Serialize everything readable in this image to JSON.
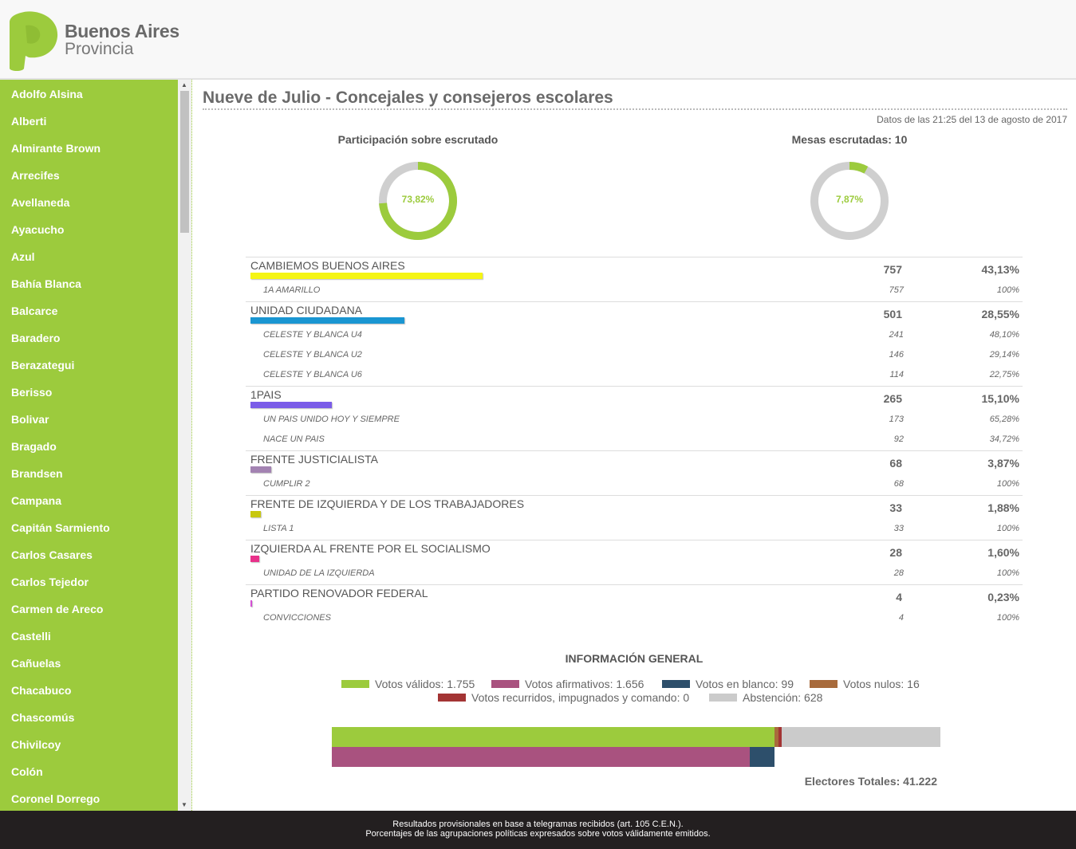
{
  "brand": {
    "line1": "Buenos Aires",
    "line2": "Provincia",
    "logo_color": "#9ccb3d",
    "logo_icon": "p-logo-icon"
  },
  "sidebar": {
    "items": [
      {
        "label": "Adolfo Alsina"
      },
      {
        "label": "Alberti"
      },
      {
        "label": "Almirante Brown"
      },
      {
        "label": "Arrecifes"
      },
      {
        "label": "Avellaneda"
      },
      {
        "label": "Ayacucho"
      },
      {
        "label": "Azul"
      },
      {
        "label": "Bahía Blanca"
      },
      {
        "label": "Balcarce"
      },
      {
        "label": "Baradero"
      },
      {
        "label": "Berazategui"
      },
      {
        "label": "Berisso"
      },
      {
        "label": "Bolivar"
      },
      {
        "label": "Bragado"
      },
      {
        "label": "Brandsen"
      },
      {
        "label": "Campana"
      },
      {
        "label": "Capitán Sarmiento"
      },
      {
        "label": "Carlos Casares"
      },
      {
        "label": "Carlos Tejedor"
      },
      {
        "label": "Carmen de Areco"
      },
      {
        "label": "Castelli"
      },
      {
        "label": "Cañuelas"
      },
      {
        "label": "Chacabuco"
      },
      {
        "label": "Chascomús"
      },
      {
        "label": "Chivilcoy"
      },
      {
        "label": "Colón"
      },
      {
        "label": "Coronel Dorrego"
      }
    ],
    "background_color": "#9ccb3d"
  },
  "main": {
    "title": "Nueve de Julio - Concejales y consejeros escolares",
    "timestamp": "Datos de las 21:25 del 13 de agosto de 2017",
    "participation": {
      "title": "Participación sobre escrutado",
      "value_label": "73,82%",
      "fraction": 0.7382,
      "fill_color": "#9ccb3d",
      "track_color": "#cfcfcf"
    },
    "tables_counted": {
      "title": "Mesas escrutadas: 10",
      "value_label": "7,87%",
      "fraction": 0.0787,
      "fill_color": "#9ccb3d",
      "track_color": "#cfcfcf"
    },
    "parties": [
      {
        "name": "CAMBIEMOS BUENOS AIRES",
        "votes": "757",
        "pct": "43,13%",
        "share": 0.4313,
        "color": "#f5f515",
        "lists": [
          {
            "name": "1A AMARILLO",
            "votes": "757",
            "pct": "100%"
          }
        ]
      },
      {
        "name": "UNIDAD CIUDADANA",
        "votes": "501",
        "pct": "28,55%",
        "share": 0.2855,
        "color": "#1a96d2",
        "lists": [
          {
            "name": "CELESTE Y BLANCA U4",
            "votes": "241",
            "pct": "48,10%"
          },
          {
            "name": "CELESTE Y BLANCA U2",
            "votes": "146",
            "pct": "29,14%"
          },
          {
            "name": "CELESTE Y BLANCA U6",
            "votes": "114",
            "pct": "22,75%"
          }
        ]
      },
      {
        "name": "1PAIS",
        "votes": "265",
        "pct": "15,10%",
        "share": 0.151,
        "color": "#7a5ce8",
        "lists": [
          {
            "name": "UN PAIS UNIDO HOY Y SIEMPRE",
            "votes": "173",
            "pct": "65,28%"
          },
          {
            "name": "NACE UN PAIS",
            "votes": "92",
            "pct": "34,72%"
          }
        ]
      },
      {
        "name": "FRENTE JUSTICIALISTA",
        "votes": "68",
        "pct": "3,87%",
        "share": 0.0387,
        "color": "#a383b2",
        "lists": [
          {
            "name": "CUMPLIR 2",
            "votes": "68",
            "pct": "100%"
          }
        ]
      },
      {
        "name": "FRENTE DE IZQUIERDA Y DE LOS TRABAJADORES",
        "votes": "33",
        "pct": "1,88%",
        "share": 0.0188,
        "color": "#c8c810",
        "lists": [
          {
            "name": "LISTA 1",
            "votes": "33",
            "pct": "100%"
          }
        ]
      },
      {
        "name": "IZQUIERDA AL FRENTE POR EL SOCIALISMO",
        "votes": "28",
        "pct": "1,60%",
        "share": 0.016,
        "color": "#e8318a",
        "lists": [
          {
            "name": "UNIDAD DE LA IZQUIERDA",
            "votes": "28",
            "pct": "100%"
          }
        ]
      },
      {
        "name": "PARTIDO RENOVADOR FEDERAL",
        "votes": "4",
        "pct": "0,23%",
        "share": 0.0023,
        "color": "#d44fd4",
        "lists": [
          {
            "name": "CONVICCIONES",
            "votes": "4",
            "pct": "100%"
          }
        ]
      }
    ]
  },
  "general_info": {
    "title": "INFORMACIÓN GENERAL",
    "legend": [
      {
        "label": "Votos válidos: 1.755",
        "color": "#9ccb3d"
      },
      {
        "label": "Votos afirmativos: 1.656",
        "color": "#a9527f"
      },
      {
        "label": "Votos en blanco: 99",
        "color": "#2d4f6b"
      },
      {
        "label": "Votos nulos: 16",
        "color": "#a86b3c"
      },
      {
        "label": "Votos recurridos, impugnados y comando: 0",
        "color": "#a33434"
      },
      {
        "label": "Abstención: 628",
        "color": "#cbcbcb"
      }
    ],
    "bar_values": {
      "validos": 1755,
      "afirmativos": 1656,
      "blanco": 99,
      "nulos": 16,
      "recurridos": 0,
      "abstencion": 628
    },
    "electores": "Electores Totales: 41.222"
  },
  "footer": {
    "line1": "Resultados provisionales en base a telegramas recibidos (art. 105 C.E.N.).",
    "line2": "Porcentajes de las agrupaciones políticas expresados sobre votos válidamente emitidos."
  }
}
